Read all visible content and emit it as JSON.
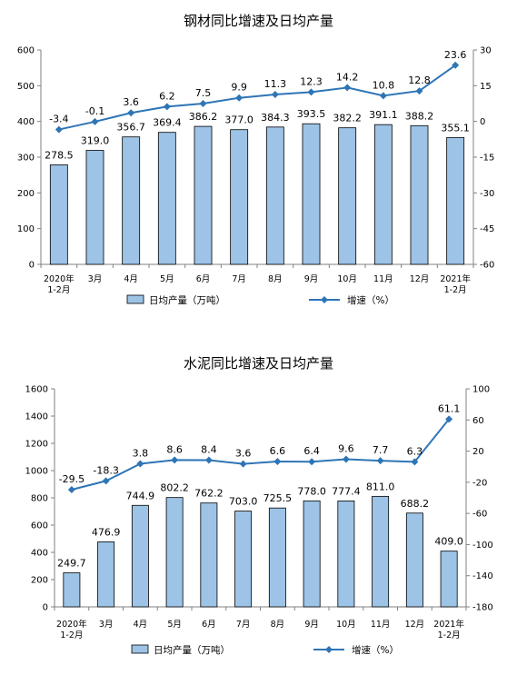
{
  "chart_data": [
    {
      "type": "bar",
      "title": "钢材同比增速及日均产量",
      "categories": [
        [
          "2020年",
          "1-2月"
        ],
        [
          "3月"
        ],
        [
          "4月"
        ],
        [
          "5月"
        ],
        [
          "6月"
        ],
        [
          "7月"
        ],
        [
          "8月"
        ],
        [
          "9月"
        ],
        [
          "10月"
        ],
        [
          "11月"
        ],
        [
          "12月"
        ],
        [
          "2021年",
          "1-2月"
        ]
      ],
      "series": [
        {
          "name": "日均产量（万吨）",
          "type": "bar",
          "axis": "left",
          "values": [
            278.5,
            319.0,
            356.7,
            369.4,
            386.2,
            377.0,
            384.3,
            393.5,
            382.2,
            391.1,
            388.2,
            355.1
          ],
          "labels": [
            "278.5",
            "319.0",
            "356.7",
            "369.4",
            "386.2",
            "377.0",
            "384.3",
            "393.5",
            "382.2",
            "391.1",
            "388.2",
            "355.1"
          ]
        },
        {
          "name": "增速（%）",
          "type": "line",
          "axis": "right",
          "values": [
            -3.4,
            -0.1,
            3.6,
            6.2,
            7.5,
            9.9,
            11.3,
            12.3,
            14.2,
            10.8,
            12.8,
            23.6
          ],
          "labels": [
            "-3.4",
            "-0.1",
            "3.6",
            "6.2",
            "7.5",
            "9.9",
            "11.3",
            "12.3",
            "14.2",
            "10.8",
            "12.8",
            "23.6"
          ]
        }
      ],
      "y_left": {
        "min": 0,
        "max": 600,
        "ticks": [
          "0",
          "100",
          "200",
          "300",
          "400",
          "500",
          "600"
        ]
      },
      "y_right": {
        "min": -60,
        "max": 30,
        "ticks": [
          "-60",
          "-45",
          "-30",
          "-15",
          "0",
          "15",
          "30"
        ]
      },
      "colors": {
        "bar_fill": "#9dc3e6",
        "bar_edge": "#000000",
        "line": "#2e75b6"
      },
      "legend": "bottom",
      "grid": false
    },
    {
      "type": "bar",
      "title": "水泥同比增速及日均产量",
      "categories": [
        [
          "2020年",
          "1-2月"
        ],
        [
          "3月"
        ],
        [
          "4月"
        ],
        [
          "5月"
        ],
        [
          "6月"
        ],
        [
          "7月"
        ],
        [
          "8月"
        ],
        [
          "9月"
        ],
        [
          "10月"
        ],
        [
          "11月"
        ],
        [
          "12月"
        ],
        [
          "2021年",
          "1-2月"
        ]
      ],
      "series": [
        {
          "name": "日均产量（万吨）",
          "type": "bar",
          "axis": "left",
          "values": [
            249.7,
            476.9,
            744.9,
            802.2,
            762.2,
            703.0,
            725.5,
            778.0,
            777.4,
            811.0,
            688.2,
            409.0
          ],
          "labels": [
            "249.7",
            "476.9",
            "744.9",
            "802.2",
            "762.2",
            "703.0",
            "725.5",
            "778.0",
            "777.4",
            "811.0",
            "688.2",
            "409.0"
          ]
        },
        {
          "name": "增速（%）",
          "type": "line",
          "axis": "right",
          "values": [
            -29.5,
            -18.3,
            3.8,
            8.6,
            8.4,
            3.6,
            6.6,
            6.4,
            9.6,
            7.7,
            6.3,
            61.1
          ],
          "labels": [
            "-29.5",
            "-18.3",
            "3.8",
            "8.6",
            "8.4",
            "3.6",
            "6.6",
            "6.4",
            "9.6",
            "7.7",
            "6.3",
            "61.1"
          ]
        }
      ],
      "y_left": {
        "min": 0,
        "max": 1600,
        "ticks": [
          "0",
          "200",
          "400",
          "600",
          "800",
          "1000",
          "1200",
          "1400",
          "1600"
        ]
      },
      "y_right": {
        "min": -180,
        "max": 100,
        "ticks": [
          "-180",
          "-140",
          "-100",
          "-60",
          "-20",
          "20",
          "60",
          "100"
        ]
      },
      "colors": {
        "bar_fill": "#9dc3e6",
        "bar_edge": "#000000",
        "line": "#2e75b6"
      },
      "legend": "bottom",
      "grid": false
    }
  ]
}
